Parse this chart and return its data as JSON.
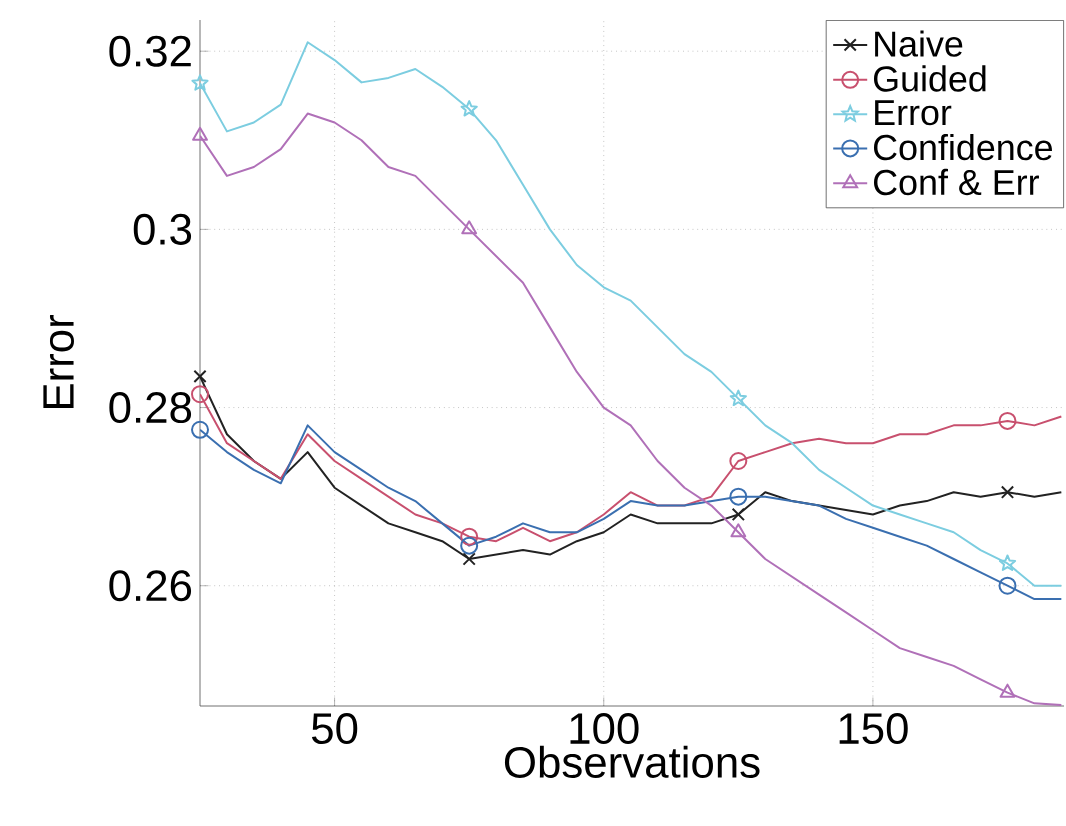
{
  "chart_data": {
    "type": "line",
    "xlabel": "Observations",
    "ylabel": "Error",
    "x": [
      25,
      30,
      35,
      40,
      45,
      50,
      55,
      60,
      65,
      70,
      75,
      80,
      85,
      90,
      95,
      100,
      105,
      110,
      115,
      120,
      125,
      130,
      135,
      140,
      145,
      150,
      155,
      160,
      165,
      170,
      175,
      180,
      185
    ],
    "xlim": [
      25,
      185.5
    ],
    "ylim": [
      0.2465,
      0.3235
    ],
    "xticks": [
      50,
      100,
      150
    ],
    "yticks": [
      0.26,
      0.28,
      0.3,
      0.32
    ],
    "grid": true,
    "legend": "top right",
    "line_style": "solid",
    "series": [
      {
        "name": "Naive",
        "color": "#222222",
        "values": [
          0.2835,
          0.277,
          0.274,
          0.272,
          0.275,
          0.271,
          0.269,
          0.267,
          0.266,
          0.265,
          0.263,
          0.2635,
          0.264,
          0.2635,
          0.265,
          0.266,
          0.268,
          0.267,
          0.267,
          0.267,
          0.268,
          0.2705,
          0.2695,
          0.269,
          0.2685,
          0.268,
          0.269,
          0.2695,
          0.2705,
          0.27,
          0.2705,
          0.27,
          0.2705
        ]
      },
      {
        "name": "Guided",
        "color": "#c8506e",
        "values": [
          0.2815,
          0.276,
          0.274,
          0.272,
          0.277,
          0.274,
          0.272,
          0.27,
          0.268,
          0.267,
          0.2655,
          0.265,
          0.2665,
          0.265,
          0.266,
          0.268,
          0.2705,
          0.269,
          0.269,
          0.27,
          0.274,
          0.275,
          0.276,
          0.2765,
          0.276,
          0.276,
          0.277,
          0.277,
          0.278,
          0.278,
          0.2785,
          0.278,
          0.279
        ]
      },
      {
        "name": "Error",
        "color": "#7ccde0",
        "values": [
          0.3164,
          0.311,
          0.312,
          0.314,
          0.321,
          0.319,
          0.3165,
          0.317,
          0.318,
          0.316,
          0.3135,
          0.31,
          0.305,
          0.3,
          0.296,
          0.2935,
          0.292,
          0.289,
          0.286,
          0.284,
          0.281,
          0.278,
          0.276,
          0.273,
          0.271,
          0.269,
          0.268,
          0.267,
          0.266,
          0.264,
          0.2625,
          0.26,
          0.26
        ]
      },
      {
        "name": "Confidence",
        "color": "#3a6fb0",
        "values": [
          0.2775,
          0.275,
          0.273,
          0.2715,
          0.278,
          0.275,
          0.273,
          0.271,
          0.2695,
          0.267,
          0.2645,
          0.2655,
          0.267,
          0.266,
          0.266,
          0.2675,
          0.2695,
          0.269,
          0.269,
          0.2695,
          0.27,
          0.27,
          0.2695,
          0.269,
          0.2675,
          0.2665,
          0.2655,
          0.2645,
          0.263,
          0.2615,
          0.26,
          0.2585,
          0.2585
        ]
      },
      {
        "name": "Conf & Err",
        "color": "#b070b8",
        "values": [
          0.3105,
          0.306,
          0.307,
          0.309,
          0.313,
          0.312,
          0.31,
          0.307,
          0.306,
          0.303,
          0.3,
          0.297,
          0.294,
          0.289,
          0.284,
          0.28,
          0.278,
          0.274,
          0.271,
          0.269,
          0.266,
          0.263,
          0.261,
          0.259,
          0.257,
          0.255,
          0.253,
          0.252,
          0.251,
          0.2495,
          0.248,
          0.2468,
          0.2466
        ]
      },
      {
        "type": "scatter",
        "color": "#222222",
        "marker": "cross",
        "x": [
          25,
          75,
          125,
          175
        ],
        "values": [
          0.2835,
          0.263,
          0.268,
          0.2705
        ]
      },
      {
        "type": "scatter",
        "color": "#c8506e",
        "marker": "circle",
        "x": [
          25,
          75,
          125,
          175
        ],
        "values": [
          0.2815,
          0.2655,
          0.274,
          0.2785
        ]
      },
      {
        "type": "scatter",
        "color": "#7ccde0",
        "marker": "star",
        "x": [
          25,
          75,
          125,
          175
        ],
        "values": [
          0.3164,
          0.3135,
          0.281,
          0.2625
        ]
      },
      {
        "type": "scatter",
        "color": "#3a6fb0",
        "marker": "circle",
        "x": [
          25,
          75,
          125,
          175
        ],
        "values": [
          0.2775,
          0.2645,
          0.27,
          0.26
        ]
      },
      {
        "type": "scatter",
        "color": "#b070b8",
        "marker": "triangle",
        "x": [
          25,
          75,
          125,
          175
        ],
        "values": [
          0.3105,
          0.3,
          0.266,
          0.248
        ]
      }
    ]
  }
}
